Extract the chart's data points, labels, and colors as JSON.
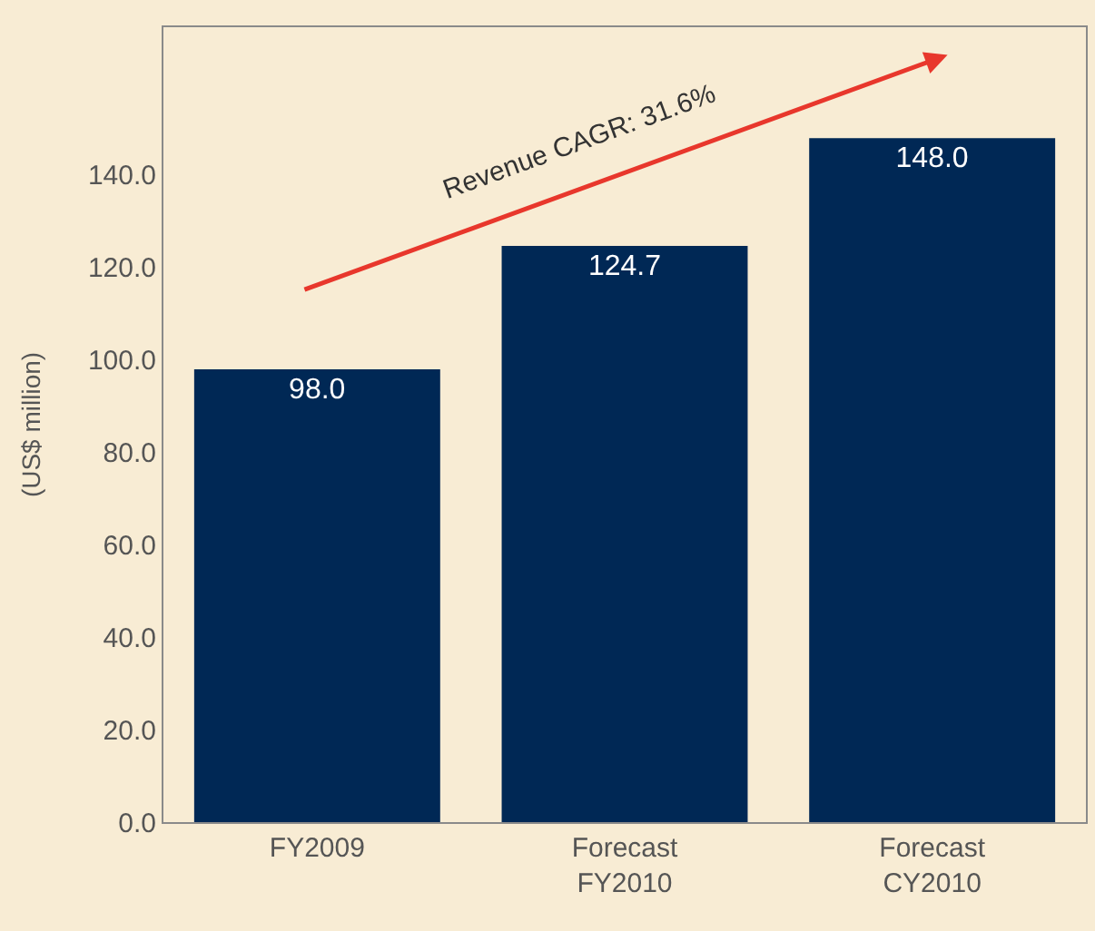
{
  "chart_data": {
    "type": "bar",
    "categories": [
      "FY2009",
      "Forecast\nFY2010",
      "Forecast\nCY2010"
    ],
    "values": [
      98.0,
      124.7,
      148.0
    ],
    "color": "#002855",
    "value_labels": [
      "98.0",
      "124.7",
      "148.0"
    ],
    "ylabel": "(US$ million)",
    "ylim": [
      0,
      172
    ],
    "yticks": [
      {
        "value": 0,
        "label": "0.0"
      },
      {
        "value": 20,
        "label": "20.0"
      },
      {
        "value": 40,
        "label": "40.0"
      },
      {
        "value": 60,
        "label": "60.0"
      },
      {
        "value": 80,
        "label": "80.0"
      },
      {
        "value": 100,
        "label": "100.0"
      },
      {
        "value": 120,
        "label": "120.0"
      },
      {
        "value": 140,
        "label": "140.0"
      }
    ],
    "annotations": [
      "Revenue CAGR: 31.6%"
    ],
    "grid": false,
    "legend": false
  }
}
